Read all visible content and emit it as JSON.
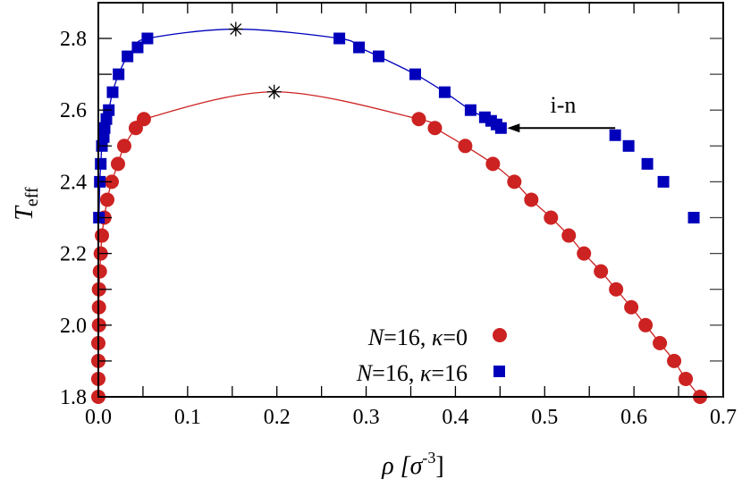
{
  "chart_data": {
    "type": "scatter",
    "xlabel": {
      "main": "ρ [σ",
      "sup": "-3",
      "end": "]"
    },
    "ylabel": {
      "main": "T",
      "sub": "eff"
    },
    "xlim": [
      0.0,
      0.7
    ],
    "ylim": [
      1.8,
      2.9
    ],
    "xticks": [
      "0.0",
      "0.1",
      "0.2",
      "0.3",
      "0.4",
      "0.5",
      "0.6",
      "0.7"
    ],
    "xtick_values": [
      0,
      0.1,
      0.2,
      0.3,
      0.4,
      0.5,
      0.6,
      0.7
    ],
    "yticks": [
      "1.8",
      "2.0",
      "2.2",
      "2.4",
      "2.6",
      "2.8"
    ],
    "ytick_values": [
      1.8,
      2.0,
      2.2,
      2.4,
      2.6,
      2.8
    ],
    "grid": false,
    "legend_placement": "bottom-right",
    "series": [
      {
        "name": "N=16, κ=0",
        "legend": {
          "n": "N",
          "a": "=16, ",
          "k": "κ",
          "b": "=0"
        },
        "marker": "circle",
        "color": "#cc2222",
        "x": [
          0,
          0,
          0,
          0,
          0.0007,
          0.0007,
          0.0007,
          0.0017,
          0.0027,
          0.004,
          0.0067,
          0.01,
          0.015,
          0.022,
          0.029,
          0.042,
          0.051,
          0.359,
          0.377,
          0.411,
          0.442,
          0.466,
          0.485,
          0.507,
          0.527,
          0.544,
          0.563,
          0.58,
          0.597,
          0.613,
          0.629,
          0.645,
          0.658,
          0.674
        ],
        "y": [
          1.8,
          1.85,
          1.9,
          1.95,
          2.0,
          2.05,
          2.1,
          2.15,
          2.2,
          2.25,
          2.3,
          2.35,
          2.4,
          2.45,
          2.5,
          2.55,
          2.575,
          2.575,
          2.55,
          2.5,
          2.45,
          2.4,
          2.35,
          2.3,
          2.25,
          2.2,
          2.15,
          2.1,
          2.05,
          2.0,
          1.95,
          1.9,
          1.85,
          1.8
        ],
        "critical_point": [
          0.197,
          2.651
        ]
      },
      {
        "name": "N=16, κ=16",
        "legend": {
          "n": "N",
          "a": "=16, ",
          "k": "κ",
          "b": "=16"
        },
        "marker": "square",
        "color": "#0000bb",
        "x": [
          0.0007,
          0.0017,
          0.0027,
          0.004,
          0.006,
          0.007,
          0.009,
          0.0117,
          0.016,
          0.0227,
          0.0327,
          0.044,
          0.055,
          0.27,
          0.292,
          0.314,
          0.355,
          0.388,
          0.417,
          0.433,
          0.44,
          0.446,
          0.451,
          0.579,
          0.594,
          0.615,
          0.633,
          0.667
        ],
        "y": [
          2.3,
          2.4,
          2.45,
          2.5,
          2.525,
          2.55,
          2.575,
          2.6,
          2.65,
          2.7,
          2.75,
          2.775,
          2.8,
          2.8,
          2.775,
          2.75,
          2.7,
          2.65,
          2.6,
          2.58,
          2.57,
          2.56,
          2.55,
          2.53,
          2.5,
          2.45,
          2.4,
          2.3
        ],
        "fit_point_count": 23,
        "critical_point": [
          0.154,
          2.826
        ]
      }
    ],
    "annotations": [
      {
        "text": "i-n",
        "arrow_from": [
          0.579,
          2.55
        ],
        "arrow_to": [
          0.458,
          2.55
        ]
      }
    ]
  }
}
